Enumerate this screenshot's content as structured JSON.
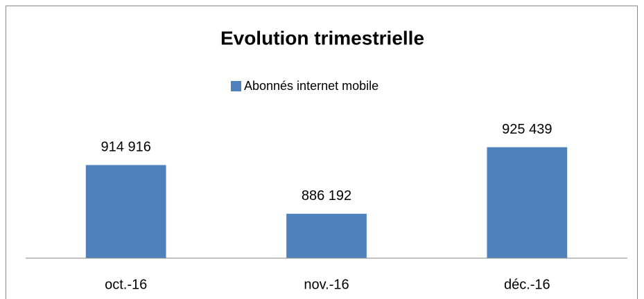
{
  "chart_data": {
    "type": "bar",
    "title": "Evolution trimestrielle",
    "categories": [
      "oct.-16",
      "nov.-16",
      "déc.-16"
    ],
    "series": [
      {
        "name": "Abonnés internet mobile",
        "color": "#4f81bd",
        "values": [
          914916,
          886192,
          925439
        ],
        "value_labels": [
          "914 916",
          "886 192",
          "925 439"
        ]
      }
    ],
    "ylim": [
      860000,
      940000
    ],
    "legend": "top"
  }
}
